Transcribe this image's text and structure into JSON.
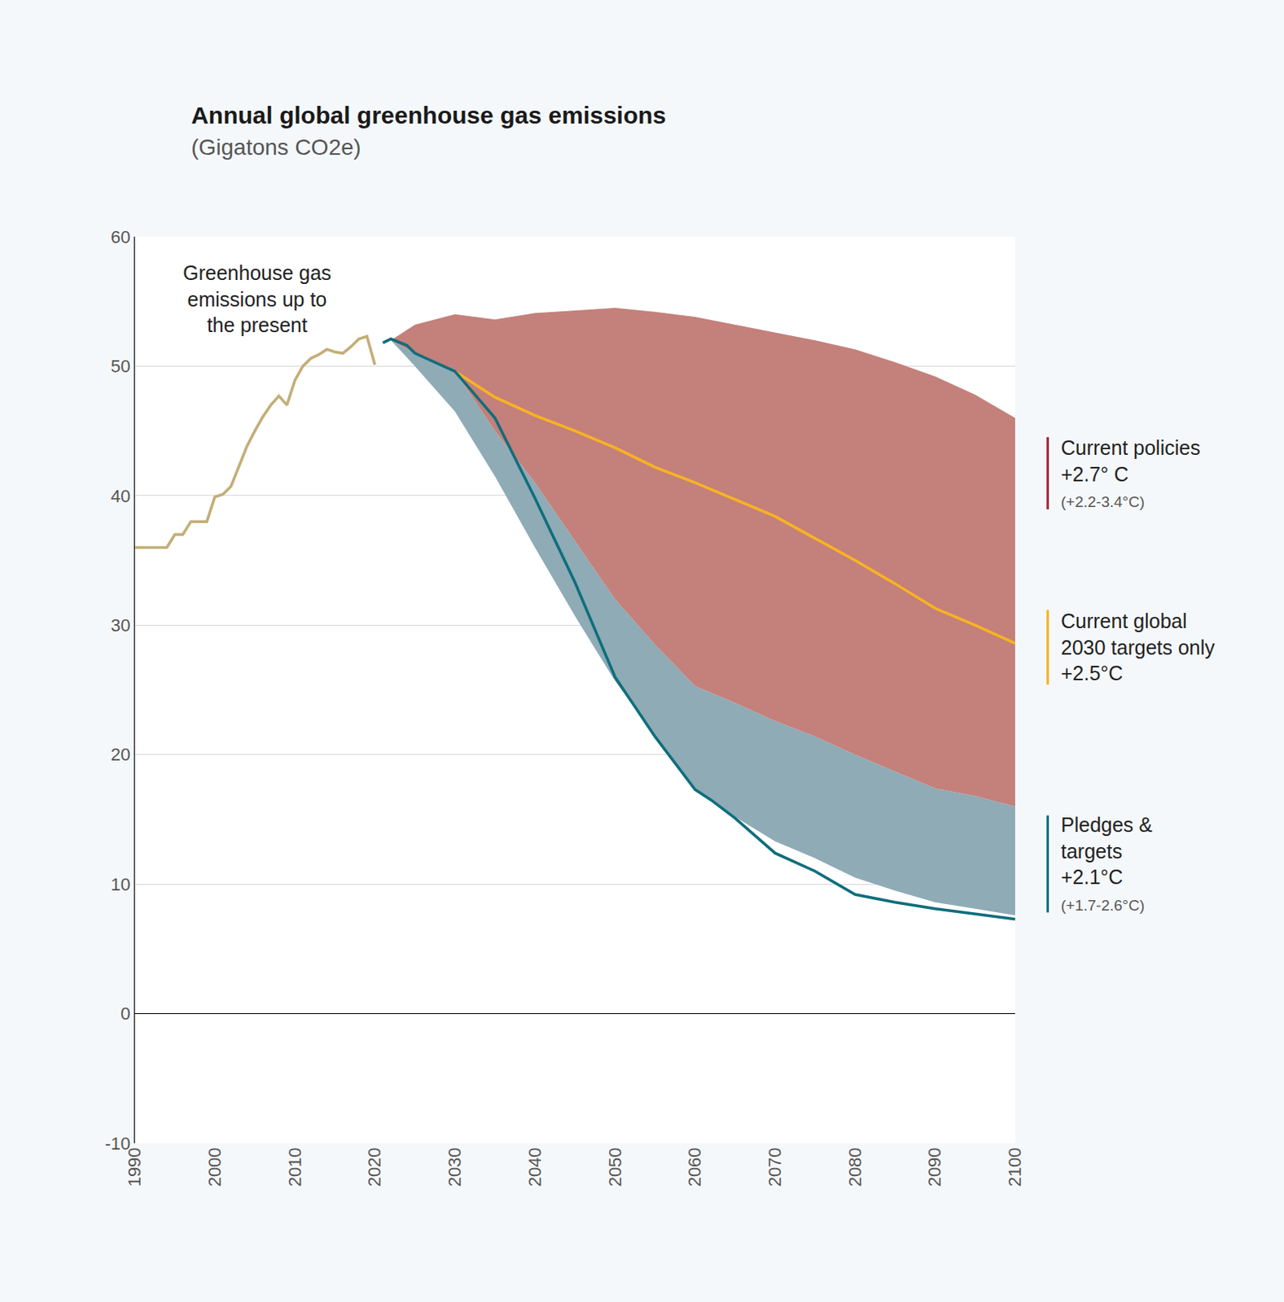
{
  "chart_data": {
    "type": "line",
    "title": "Annual global greenhouse gas emissions",
    "subtitle": "(Gigatons CO2e)",
    "xlim": [
      1990,
      2100
    ],
    "xticks": [
      1990,
      2000,
      2010,
      2020,
      2030,
      2040,
      2050,
      2060,
      2070,
      2080,
      2090,
      2100
    ],
    "ylim": [
      -10,
      60
    ],
    "yticks": [
      -10,
      0,
      10,
      20,
      30,
      40,
      50,
      60
    ],
    "grid": true,
    "annotation": [
      "Greenhouse gas",
      "emissions up to",
      "the present"
    ],
    "series": [
      {
        "type": "band",
        "color": "#8eabb6",
        "x": [
          2022,
          2025,
          2030,
          2035,
          2040,
          2045,
          2050,
          2055,
          2060,
          2065,
          2070,
          2075,
          2080,
          2085,
          2090,
          2095,
          2100
        ],
        "lower": [
          52,
          50,
          46.5,
          41.5,
          36,
          30.7,
          25.7,
          21.5,
          17.3,
          15.2,
          13.3,
          12,
          10.5,
          9.5,
          8.6,
          8.1,
          7.6
        ],
        "upper": [
          52,
          51,
          49.6,
          45,
          41,
          36.5,
          32,
          28.5,
          25.3,
          24,
          22.6,
          21.4,
          20,
          18.7,
          17.4,
          16.8,
          16
        ]
      },
      {
        "type": "band",
        "color": "#c4807a",
        "x": [
          2022,
          2025,
          2030,
          2035,
          2040,
          2045,
          2050,
          2055,
          2060,
          2065,
          2070,
          2075,
          2080,
          2085,
          2090,
          2095,
          2100
        ],
        "lower": [
          52,
          51,
          49.6,
          45,
          41,
          36.5,
          32,
          28.5,
          25.3,
          24,
          22.6,
          21.4,
          20,
          18.7,
          17.4,
          16.8,
          16
        ],
        "upper": [
          52,
          53.2,
          54,
          53.6,
          54.1,
          54.3,
          54.5,
          54.2,
          53.8,
          53.2,
          52.6,
          52,
          51.3,
          50.3,
          49.2,
          47.8,
          46
        ]
      },
      {
        "type": "line",
        "color": "#f7b323",
        "x": [
          2030,
          2035,
          2040,
          2045,
          2050,
          2055,
          2060,
          2065,
          2070,
          2075,
          2080,
          2085,
          2090,
          2095,
          2100
        ],
        "values": [
          49.6,
          47.6,
          46.2,
          45,
          43.7,
          42.2,
          41,
          39.7,
          38.4,
          36.7,
          35,
          33.2,
          31.3,
          30,
          28.6
        ]
      },
      {
        "type": "line",
        "color": "#0f6e7c",
        "x": [
          2021,
          2022,
          2024,
          2025,
          2030,
          2035,
          2040,
          2045,
          2050,
          2055,
          2060,
          2062,
          2065,
          2070,
          2075,
          2080,
          2085,
          2090,
          2095,
          2100
        ],
        "values": [
          51.8,
          52.1,
          51.6,
          51,
          49.6,
          46,
          39.8,
          33.3,
          26,
          21.4,
          17.3,
          16.5,
          15.1,
          12.4,
          11,
          9.2,
          8.6,
          8.1,
          7.7,
          7.3
        ]
      },
      {
        "type": "line",
        "color": "#c4ae78",
        "x": [
          1990,
          1991,
          1992,
          1993,
          1994,
          1995,
          1996,
          1997,
          1998,
          1999,
          2000,
          2001,
          2002,
          2003,
          2004,
          2005,
          2006,
          2007,
          2008,
          2009,
          2010,
          2011,
          2012,
          2013,
          2014,
          2015,
          2016,
          2017,
          2018,
          2019,
          2020
        ],
        "values": [
          36,
          36,
          36,
          36,
          36,
          37,
          37,
          38,
          38,
          38,
          39.9,
          40.1,
          40.7,
          42.2,
          43.8,
          45,
          46.1,
          47,
          47.7,
          47,
          48.9,
          50,
          50.6,
          50.9,
          51.3,
          51.1,
          51,
          51.5,
          52.1,
          52.3,
          50.1
        ]
      }
    ],
    "labels": [
      {
        "lines": [
          "Current policies",
          "+2.7° C"
        ],
        "note": "(+2.2-3.4°C)",
        "color": "#a3293a"
      },
      {
        "lines": [
          "Current global",
          "2030 targets only",
          "+2.5°C"
        ],
        "color": "#f7b323"
      },
      {
        "lines": [
          "Pledges &",
          "targets",
          "+2.1°C"
        ],
        "note": "(+1.7-2.6°C)",
        "color": "#0f6e7c"
      }
    ]
  }
}
